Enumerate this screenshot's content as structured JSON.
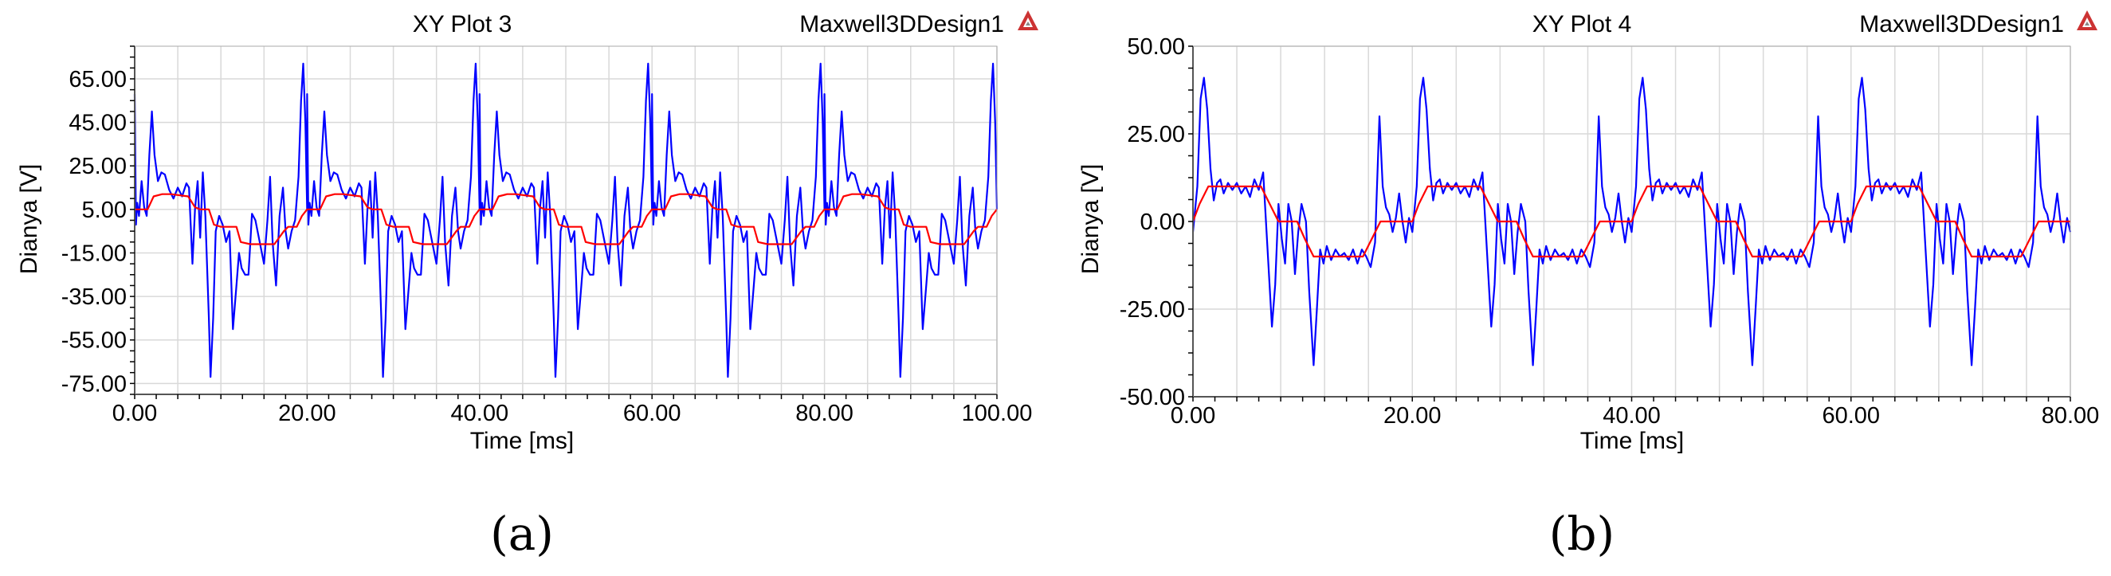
{
  "chart_data": [
    {
      "type": "line",
      "panel_label": "(a)",
      "title": "XY Plot 3",
      "design_name": "Maxwell3DDesign1",
      "xlabel": "Time [ms]",
      "ylabel": "Dianya [V]",
      "xlim": [
        0,
        100
      ],
      "ylim": [
        -80,
        80
      ],
      "x_ticks": [
        "0.00",
        "20.00",
        "40.00",
        "60.00",
        "80.00",
        "100.00"
      ],
      "y_ticks": [
        "65.00",
        "45.00",
        "25.00",
        "5.00",
        "-15.00",
        "-35.00",
        "-55.00",
        "-75.00"
      ],
      "x_tick_values": [
        0,
        20,
        40,
        60,
        80,
        100
      ],
      "y_tick_values": [
        65,
        45,
        25,
        5,
        -15,
        -35,
        -55,
        -75
      ],
      "period": 20,
      "grid": true,
      "series": [
        {
          "color": "#0000ff",
          "x": [
            0,
            0.15,
            0.3,
            0.5,
            0.8,
            1.1,
            1.4,
            1.7,
            2.0,
            2.3,
            2.7,
            3.1,
            3.5,
            4.0,
            4.5,
            5.0,
            5.5,
            6.0,
            6.3,
            6.7,
            7.0,
            7.3,
            7.6,
            7.9,
            8.2,
            8.6,
            8.8,
            9.1,
            9.4,
            9.8,
            10.2,
            10.6,
            11.0,
            11.4,
            11.8,
            12.1,
            12.4,
            12.8,
            13.2,
            13.6,
            14.0,
            14.5,
            15.0,
            15.4,
            15.7,
            16.0,
            16.4,
            16.8,
            17.2,
            17.5,
            17.8,
            18.2,
            18.6,
            19.0,
            19.3,
            19.55,
            19.8,
            20.0
          ],
          "y": [
            58,
            -2,
            8,
            2,
            18,
            6,
            2,
            30,
            50,
            30,
            18,
            22,
            21,
            14,
            10,
            15,
            11,
            17,
            15,
            -20,
            5,
            18,
            -8,
            22,
            2,
            -45,
            -72,
            -45,
            -5,
            2,
            -2,
            -10,
            -5,
            -50,
            -30,
            -15,
            -22,
            -25,
            -25,
            3,
            0,
            -10,
            -20,
            0,
            20,
            -10,
            -30,
            2,
            15,
            -5,
            -13,
            -5,
            0,
            20,
            55,
            72,
            45,
            5
          ],
          "repeat_period": 20
        },
        {
          "color": "#ff0000",
          "x": [
            0,
            1.5,
            2.2,
            3.2,
            4.2,
            6.2,
            7.0,
            7.6,
            8.6,
            9.2,
            10.0,
            11.8,
            12.3,
            13.4,
            16.2,
            17.3,
            17.8,
            18.8,
            19.4,
            20.0
          ],
          "y": [
            5,
            5,
            11,
            12,
            12,
            11,
            6,
            5,
            5,
            -2,
            -3,
            -3,
            -10,
            -11,
            -11,
            -5,
            -3,
            -3,
            2,
            5
          ],
          "repeat_period": 20
        }
      ]
    },
    {
      "type": "line",
      "panel_label": "(b)",
      "title": "XY Plot 4",
      "design_name": "Maxwell3DDesign1",
      "xlabel": "Time [ms]",
      "ylabel": "Dianya [V]",
      "xlim": [
        0,
        80
      ],
      "ylim": [
        -50,
        50
      ],
      "x_ticks": [
        "0.00",
        "20.00",
        "40.00",
        "60.00",
        "80.00"
      ],
      "y_ticks": [
        "50.00",
        "25.00",
        "0.00",
        "-25.00",
        "-50.00"
      ],
      "x_tick_values": [
        0,
        20,
        40,
        60,
        80
      ],
      "y_tick_values": [
        50,
        25,
        0,
        -25,
        -50
      ],
      "period": 20,
      "grid": true,
      "series": [
        {
          "color": "#0000ff",
          "x": [
            0,
            0.4,
            0.7,
            1.0,
            1.3,
            1.6,
            1.9,
            2.2,
            2.5,
            2.8,
            3.2,
            3.6,
            4.0,
            4.4,
            4.8,
            5.2,
            5.6,
            6.0,
            6.4,
            6.8,
            7.2,
            7.5,
            7.8,
            8.1,
            8.4,
            8.7,
            9.0,
            9.3,
            9.6,
            9.9,
            10.3,
            10.6,
            11.0,
            11.3,
            11.6,
            11.9,
            12.2,
            12.6,
            13.0,
            13.4,
            13.8,
            14.2,
            14.6,
            15.0,
            15.4,
            15.8,
            16.2,
            16.6,
            17.0,
            17.3,
            17.6,
            17.9,
            18.2,
            18.5,
            18.8,
            19.1,
            19.4,
            19.7,
            20.0
          ],
          "y": [
            -3,
            10,
            35,
            41,
            32,
            15,
            6,
            11,
            12,
            8,
            11,
            9,
            11,
            8,
            10,
            7,
            12,
            9,
            14,
            -8,
            -30,
            -18,
            5,
            -5,
            -12,
            5,
            0,
            -15,
            -3,
            5,
            0,
            -20,
            -41,
            -25,
            -8,
            -12,
            -7,
            -11,
            -8,
            -10,
            -9,
            -11,
            -8,
            -12,
            -8,
            -10,
            -13,
            -6,
            30,
            10,
            4,
            2,
            -3,
            1,
            8,
            0,
            -6,
            1,
            -3
          ],
          "repeat_period": 20
        },
        {
          "color": "#ff0000",
          "x": [
            0,
            0.6,
            1.4,
            2.2,
            6.2,
            7.0,
            7.8,
            9.5,
            10.2,
            11.0,
            11.8,
            15.5,
            16.3,
            17.1,
            17.8,
            19.2,
            19.6,
            20.0
          ],
          "y": [
            0,
            5,
            10,
            10,
            10,
            5,
            0,
            0,
            -5,
            -10,
            -10,
            -10,
            -5,
            0,
            0,
            0,
            0,
            0
          ],
          "repeat_period": 20
        }
      ]
    }
  ]
}
